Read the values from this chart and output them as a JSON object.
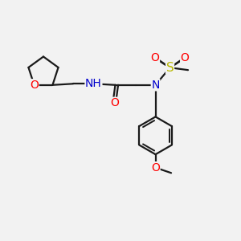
{
  "bg_color": "#f2f2f2",
  "line_color": "#1a1a1a",
  "bond_lw": 1.6,
  "atom_colors": {
    "O": "#ff0000",
    "N": "#0000cc",
    "S": "#b8b800",
    "H": "#2e8b57",
    "C": "#1a1a1a"
  },
  "font_size": 10,
  "fig_size": [
    3.0,
    3.0
  ],
  "dpi": 100,
  "xlim": [
    0,
    10
  ],
  "ylim": [
    0,
    10
  ]
}
